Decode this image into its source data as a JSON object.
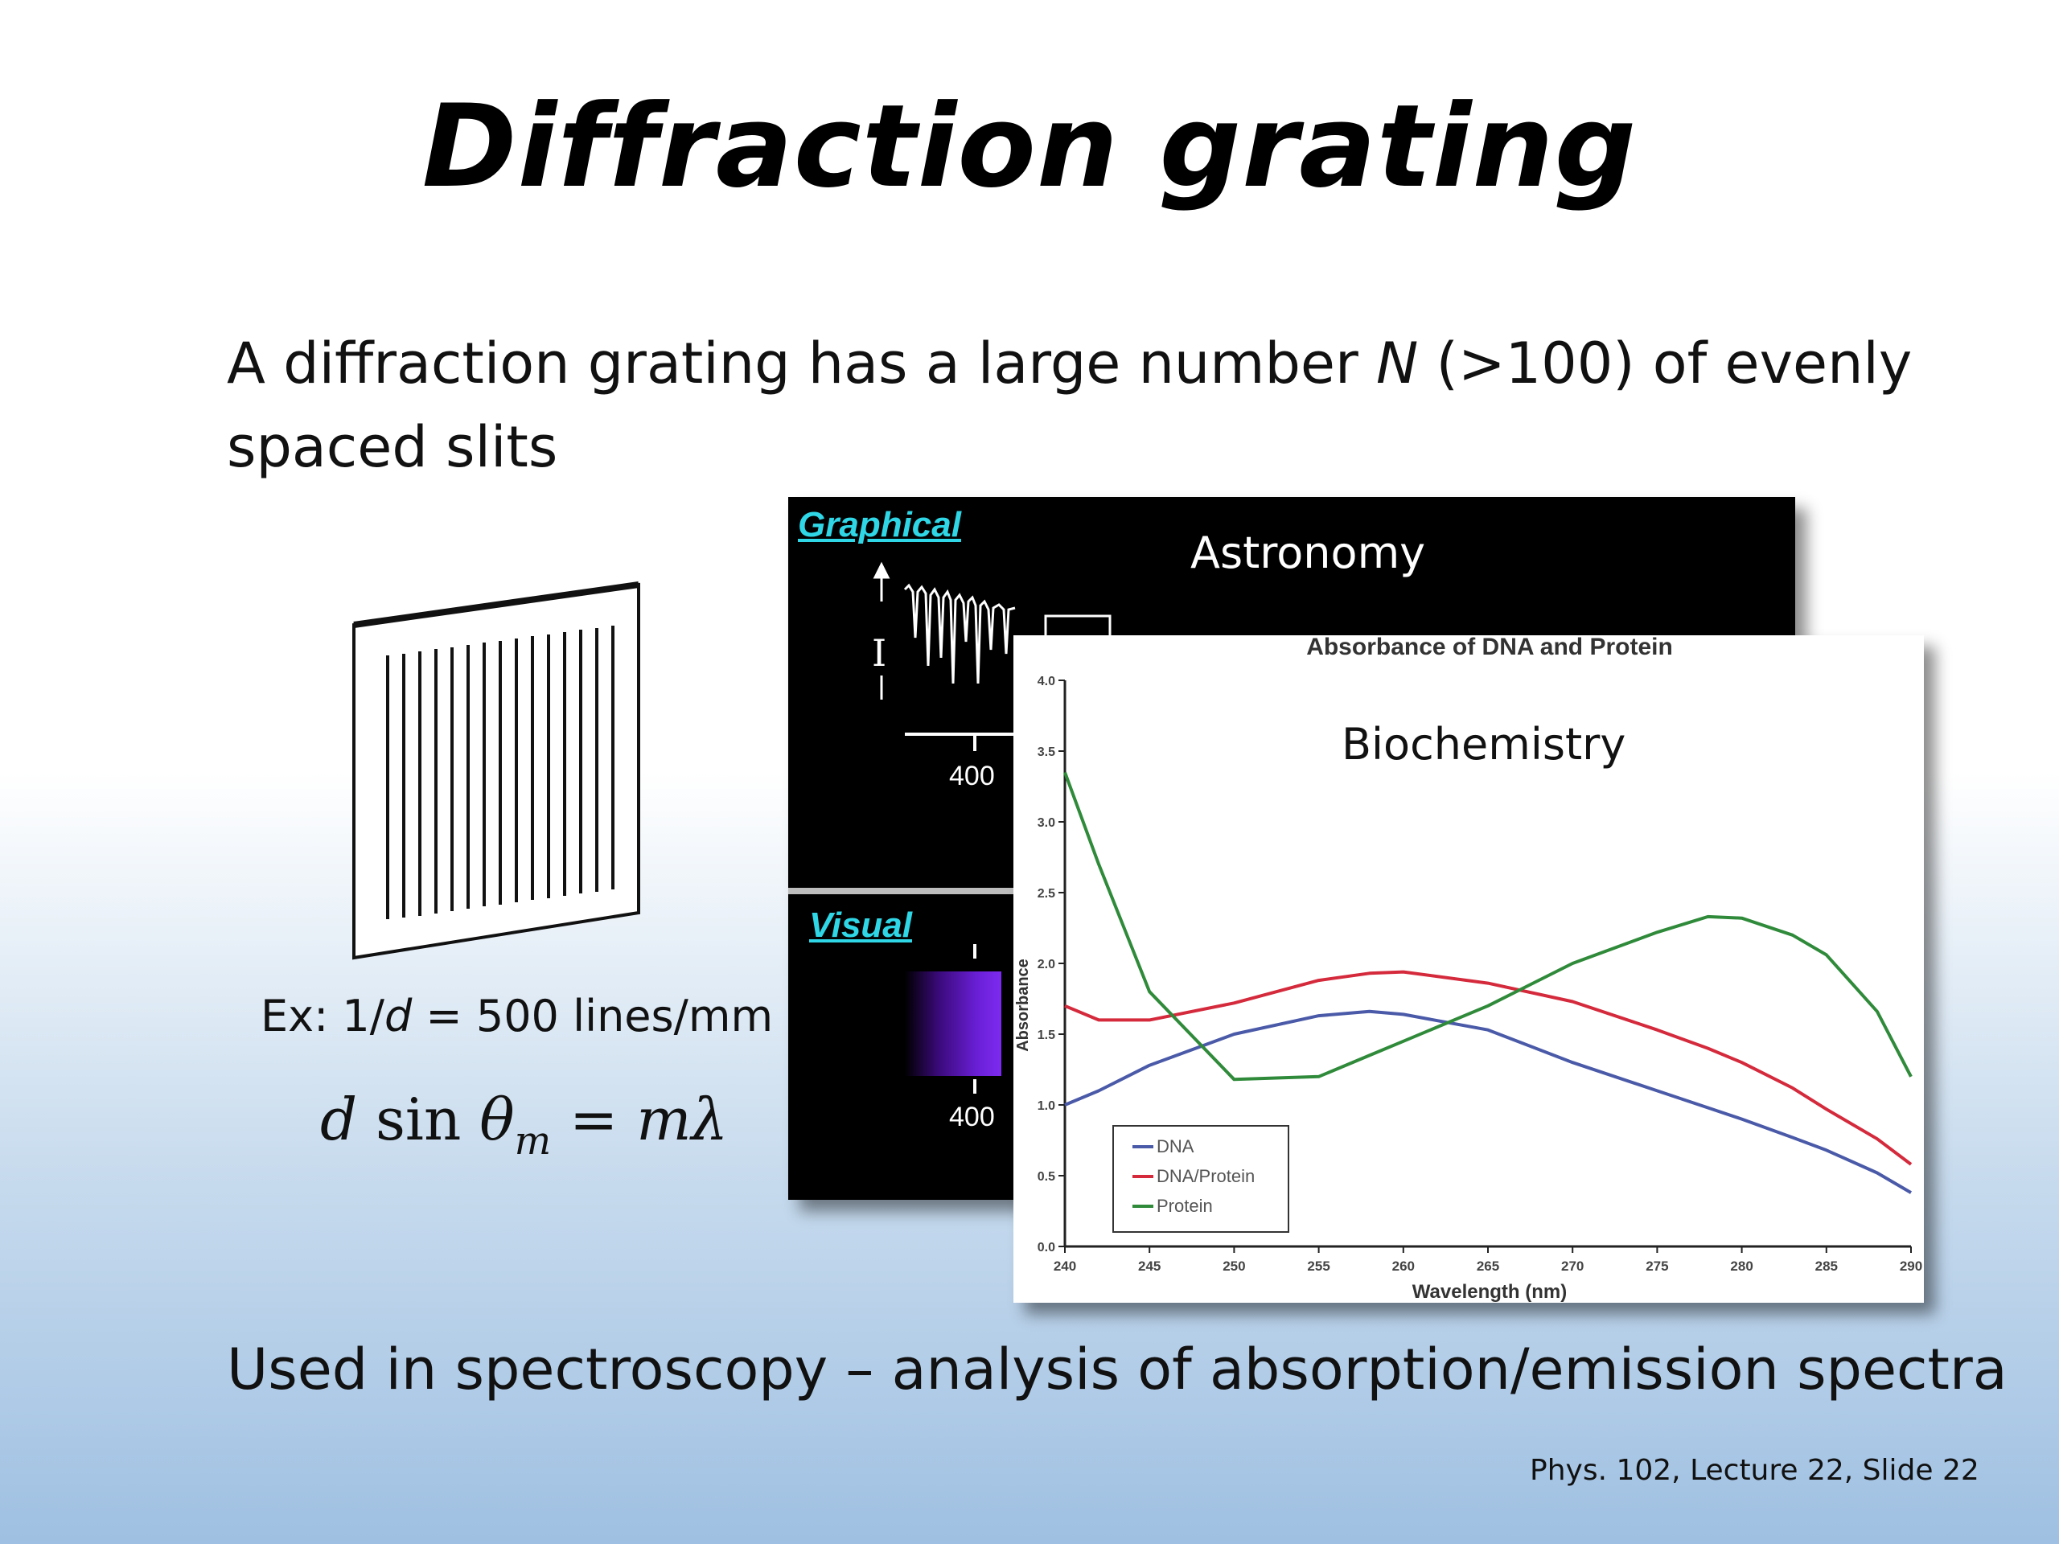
{
  "slide": {
    "title": "Diffraction grating",
    "intro": {
      "part1": "A diffraction grating has a large number ",
      "variable": "N",
      "part2": " (>100) of evenly spaced slits"
    },
    "example": {
      "prefix": "Ex: 1/",
      "variable": "d",
      "suffix": " = 500 lines/mm"
    },
    "equation": {
      "d": "d",
      "sin": "sin",
      "theta": "θ",
      "sub": "m",
      "equals": "=",
      "rhs": "mλ"
    },
    "astronomy_panel": {
      "label": "Astronomy",
      "tab_graphical": "Graphical",
      "tab_visual": "Visual",
      "axis_tick_graphical": "400",
      "axis_tick_visual": "400",
      "axis_glyph": "I"
    },
    "biochemistry_panel": {
      "label": "Biochemistry"
    },
    "bottom_text": "Used in spectroscopy – analysis of absorption/emission spectra",
    "footer": "Phys. 102, Lecture 22, Slide 22"
  },
  "chart_data": {
    "type": "line",
    "title": "Absorbance of DNA and Protein",
    "xlabel": "Wavelength (nm)",
    "ylabel": "Absorbance",
    "xlim": [
      240,
      290
    ],
    "ylim": [
      0,
      4.0
    ],
    "x_ticks": [
      "240",
      "245",
      "250",
      "255",
      "260",
      "265",
      "270",
      "275",
      "280",
      "285",
      "290"
    ],
    "y_ticks": [
      "0.0",
      "0.5",
      "1.0",
      "1.5",
      "2.0",
      "2.5",
      "3.0",
      "3.5",
      "4.0"
    ],
    "legend_position": "bottom-left",
    "grid": false,
    "x": [
      240,
      242,
      245,
      250,
      255,
      258,
      260,
      265,
      270,
      275,
      278,
      280,
      283,
      285,
      288,
      290
    ],
    "series": [
      {
        "name": "DNA",
        "color": "#4a5aa8",
        "values": [
          1.0,
          1.1,
          1.28,
          1.5,
          1.63,
          1.66,
          1.64,
          1.53,
          1.3,
          1.1,
          0.98,
          0.9,
          0.77,
          0.68,
          0.52,
          0.38
        ]
      },
      {
        "name": "DNA/Protein",
        "color": "#d42a3c",
        "values": [
          1.7,
          1.6,
          1.6,
          1.72,
          1.88,
          1.93,
          1.94,
          1.86,
          1.73,
          1.53,
          1.4,
          1.3,
          1.12,
          0.97,
          0.76,
          0.58
        ]
      },
      {
        "name": "Protein",
        "color": "#2f8a3a",
        "values": [
          3.35,
          2.7,
          1.8,
          1.18,
          1.2,
          1.35,
          1.45,
          1.7,
          2.0,
          2.22,
          2.33,
          2.32,
          2.2,
          2.06,
          1.66,
          1.2
        ]
      }
    ]
  }
}
